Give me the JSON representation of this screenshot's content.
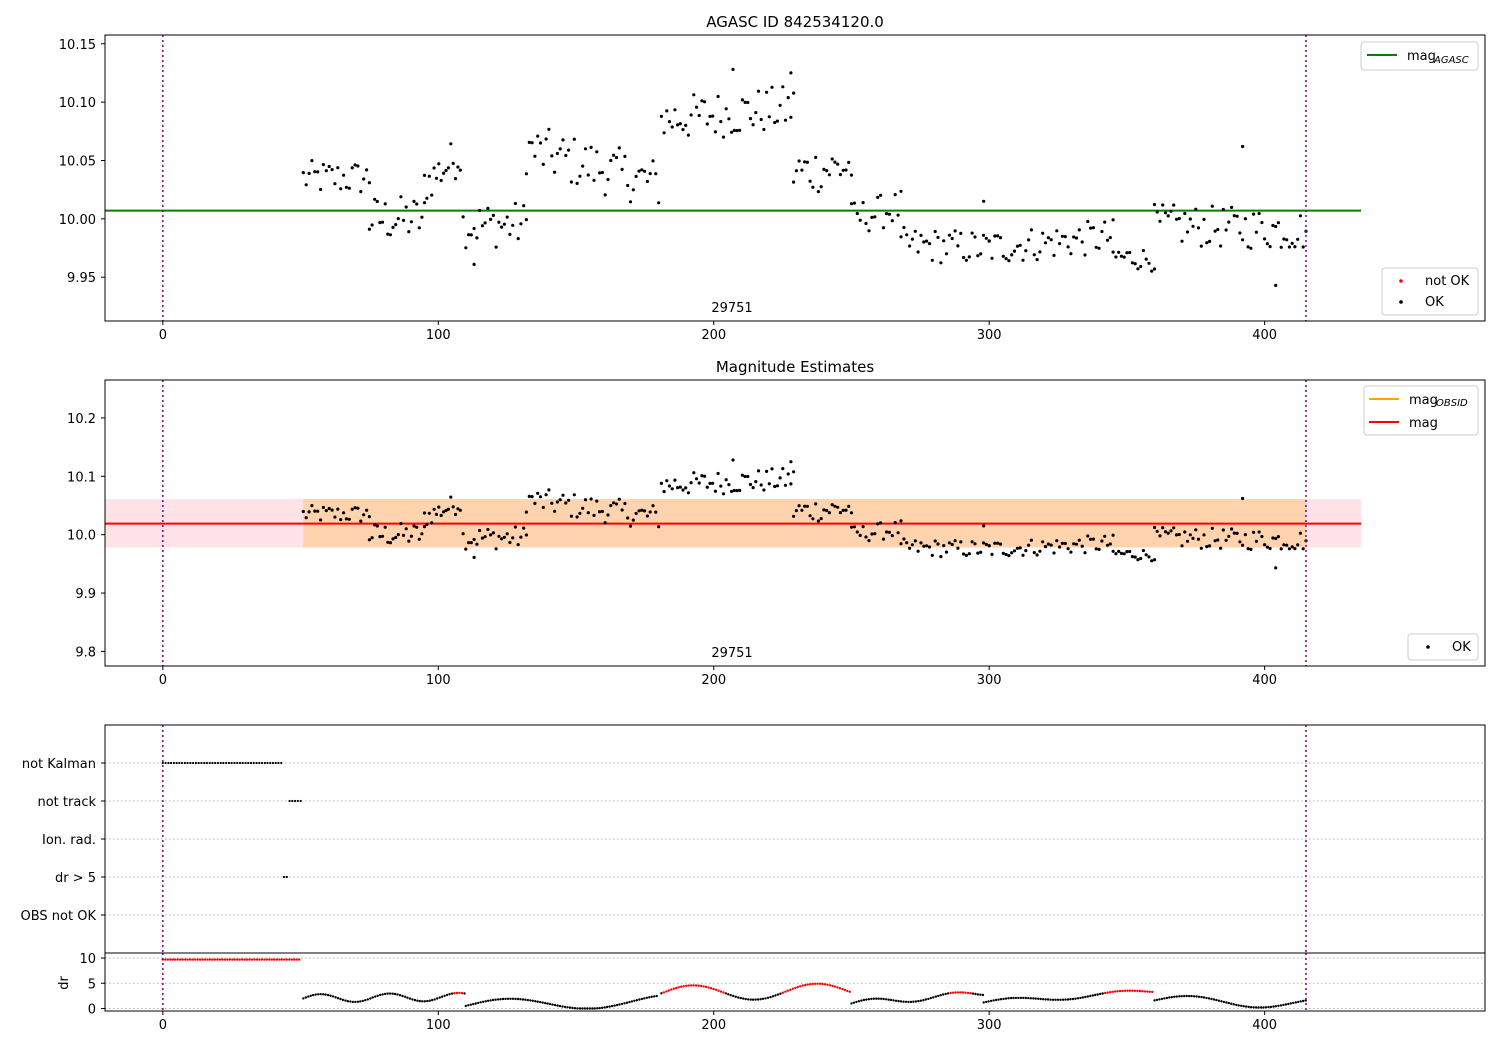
{
  "chart_data": [
    {
      "type": "scatter",
      "title": "AGASC ID 842534120.0",
      "annotation": "29751",
      "xlim": [
        -21,
        480
      ],
      "ylim": [
        9.9125,
        10.1575
      ],
      "xticks": [
        0,
        100,
        200,
        300,
        400
      ],
      "yticks": [
        "9.95",
        "10.00",
        "10.05",
        "10.10",
        "10.15"
      ],
      "ytick_values": [
        9.95,
        10.0,
        10.05,
        10.1,
        10.15
      ],
      "vlines": [
        0,
        415
      ],
      "hline": {
        "y": 10.007,
        "x_range": [
          -21,
          435
        ],
        "color": "#008000",
        "label": "mag",
        "label_sub": "AGASC"
      },
      "legend_lines": [
        {
          "label": "mag",
          "sub": "AGASC",
          "color": "#008000"
        }
      ],
      "legend_points": [
        {
          "label": "not OK",
          "color": "#ff0000"
        },
        {
          "label": "OK",
          "color": "#000000"
        }
      ],
      "series": [
        {
          "name": "OK",
          "color": "#000000",
          "segments": [
            {
              "x0": 51,
              "x1": 75,
              "y0": 10.035,
              "y1": 10.035,
              "amp": 0.015,
              "n": 24
            },
            {
              "x0": 75,
              "x1": 95,
              "y0": 10.0,
              "y1": 10.0,
              "amp": 0.02,
              "n": 22
            },
            {
              "x0": 95,
              "x1": 108,
              "y0": 10.03,
              "y1": 10.055,
              "amp": 0.018,
              "n": 16
            },
            {
              "x0": 109,
              "x1": 132,
              "y0": 9.995,
              "y1": 9.995,
              "amp": 0.02,
              "n": 24
            },
            {
              "x0": 132,
              "x1": 180,
              "y0": 10.06,
              "y1": 10.03,
              "amp": 0.022,
              "n": 48
            },
            {
              "x0": 181,
              "x1": 229,
              "y0": 10.085,
              "y1": 10.095,
              "amp": 0.02,
              "n": 50
            },
            {
              "x0": 229,
              "x1": 250,
              "y0": 10.04,
              "y1": 10.045,
              "amp": 0.02,
              "n": 22
            },
            {
              "x0": 250,
              "x1": 268,
              "y0": 10.0,
              "y1": 10.01,
              "amp": 0.015,
              "n": 18
            },
            {
              "x0": 268,
              "x1": 300,
              "y0": 9.978,
              "y1": 9.975,
              "amp": 0.015,
              "n": 32
            },
            {
              "x0": 300,
              "x1": 345,
              "y0": 9.975,
              "y1": 9.985,
              "amp": 0.015,
              "n": 45
            },
            {
              "x0": 345,
              "x1": 360,
              "y0": 9.968,
              "y1": 9.965,
              "amp": 0.01,
              "n": 16
            },
            {
              "x0": 360,
              "x1": 415,
              "y0": 9.995,
              "y1": 9.99,
              "amp": 0.018,
              "n": 56
            }
          ],
          "extras": [
            [
              392,
              10.062
            ],
            [
              404,
              9.943
            ],
            [
              298,
              10.015
            ],
            [
              207,
              10.128
            ],
            [
              228,
              10.125
            ],
            [
              113,
              9.961
            ]
          ]
        }
      ]
    },
    {
      "type": "scatter",
      "title": "Magnitude Estimates",
      "annotation": "29751",
      "xlim": [
        -21,
        480
      ],
      "ylim": [
        9.775,
        10.265
      ],
      "xticks": [
        0,
        100,
        200,
        300,
        400
      ],
      "yticks": [
        "9.8",
        "9.9",
        "10.0",
        "10.1",
        "10.2"
      ],
      "ytick_values": [
        9.8,
        9.9,
        10.0,
        10.1,
        10.2
      ],
      "vlines": [
        0,
        415
      ],
      "hline": {
        "y": 10.019,
        "x_range": [
          -21,
          435
        ],
        "color": "#ff0000",
        "label": "mag"
      },
      "band_outer": {
        "y0": 9.978,
        "y1": 10.061,
        "color": "#ffc0cb"
      },
      "band_inner": {
        "x0": 51,
        "x1": 415,
        "y0": 9.978,
        "y1": 10.061,
        "color": "#ffa500"
      },
      "legend_lines": [
        {
          "label": "mag",
          "sub": "OBSID",
          "color": "#ffa500"
        },
        {
          "label": "mag",
          "sub": "",
          "color": "#ff0000"
        }
      ],
      "legend_points": [
        {
          "label": "OK",
          "color": "#000000"
        }
      ]
    },
    {
      "type": "scatter",
      "title": "",
      "xlim": [
        -21,
        480
      ],
      "xticks": [
        0,
        100,
        200,
        300,
        400
      ],
      "vlines": [
        0,
        415
      ],
      "flags": [
        {
          "label": "not Kalman",
          "x0": 0,
          "x1": 43
        },
        {
          "label": "not track",
          "x0": 46,
          "x1": 50
        },
        {
          "label": "Ion. rad.",
          "x0": null,
          "x1": null
        },
        {
          "label": "dr > 5",
          "x0": 44,
          "x1": 45
        },
        {
          "label": "OBS not OK",
          "x0": null,
          "x1": null
        }
      ],
      "dr": {
        "ylabel": "dr",
        "ylim": [
          -0.5,
          11
        ],
        "yticks": [
          "0",
          "5",
          "10"
        ],
        "ytick_values": [
          0,
          5,
          10
        ],
        "high": {
          "x0": 0,
          "x1": 50,
          "y": 9.7,
          "color": "#ff0000"
        },
        "threshold": 3,
        "segments": [
          {
            "x0": 51,
            "x1": 110,
            "y0": 2.0,
            "y1": 2.3,
            "amp": 0.8,
            "period": 25
          },
          {
            "x0": 110,
            "x1": 180,
            "y0": 0.5,
            "y1": 1.5,
            "amp": 1.2,
            "period": 60
          },
          {
            "x0": 181,
            "x1": 250,
            "y0": 3.0,
            "y1": 3.5,
            "amp": 1.5,
            "period": 45
          },
          {
            "x0": 250,
            "x1": 298,
            "y0": 1.0,
            "y1": 3.0,
            "amp": 0.6,
            "period": 30
          },
          {
            "x0": 298,
            "x1": 360,
            "y0": 1.2,
            "y1": 3.4,
            "amp": 0.5,
            "period": 40
          },
          {
            "x0": 360,
            "x1": 415,
            "y0": 1.6,
            "y1": 1.0,
            "amp": 1.0,
            "period": 50
          }
        ]
      }
    }
  ]
}
